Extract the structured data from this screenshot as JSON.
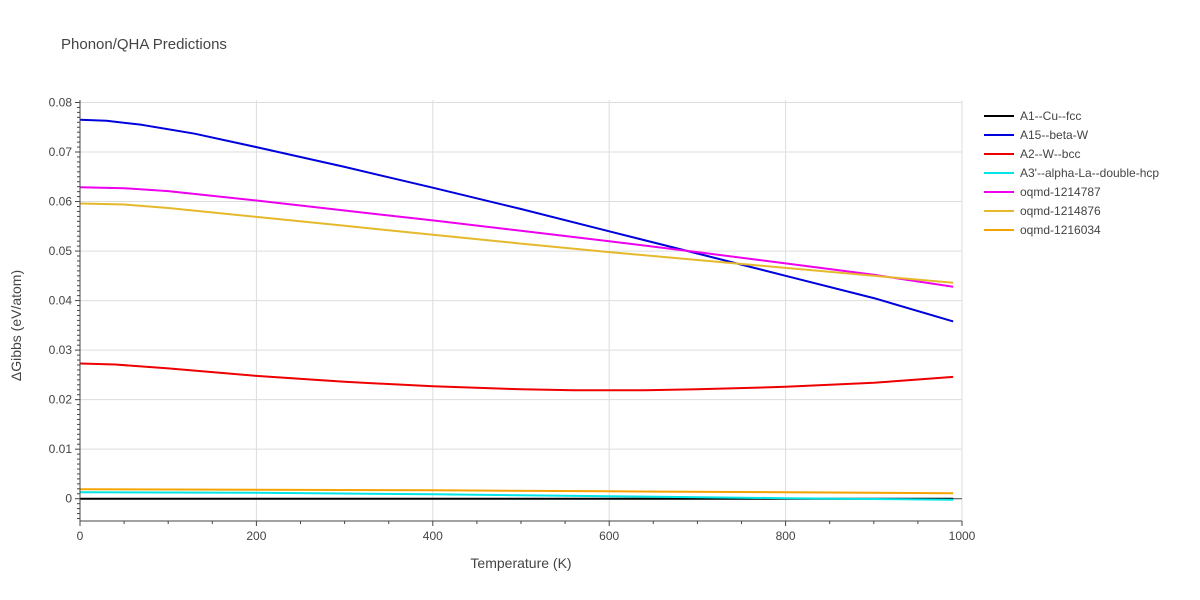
{
  "chart_data": {
    "type": "line",
    "title": "Phonon/QHA Predictions",
    "xlabel": "Temperature (K)",
    "ylabel": "ΔGibbs (eV/atom)",
    "xlim": [
      0,
      1000
    ],
    "ylim": [
      -0.0045,
      0.0805
    ],
    "x_ticks": [
      0,
      200,
      400,
      600,
      800,
      1000
    ],
    "y_ticks": [
      0,
      0.01,
      0.02,
      0.03,
      0.04,
      0.05,
      0.06,
      0.07,
      0.08
    ],
    "y_tick_labels": [
      "0",
      "0.01",
      "0.02",
      "0.03",
      "0.04",
      "0.05",
      "0.06",
      "0.07",
      "0.08"
    ],
    "grid": true,
    "legend_position": "right",
    "series": [
      {
        "name": "A1--Cu--fcc",
        "color": "#000000",
        "x": [
          0,
          990
        ],
        "y": [
          0,
          0
        ]
      },
      {
        "name": "A15--beta-W",
        "color": "#0000dd",
        "x": [
          0,
          30,
          70,
          130,
          200,
          300,
          400,
          500,
          600,
          700,
          800,
          900,
          990
        ],
        "y": [
          0.0765,
          0.0763,
          0.0755,
          0.0737,
          0.071,
          0.067,
          0.0628,
          0.0585,
          0.054,
          0.0495,
          0.045,
          0.0405,
          0.0358
        ]
      },
      {
        "name": "A2--W--bcc",
        "color": "#ee0000",
        "x": [
          0,
          40,
          100,
          200,
          300,
          400,
          500,
          560,
          640,
          700,
          800,
          900,
          990
        ],
        "y": [
          0.0273,
          0.0271,
          0.0263,
          0.0248,
          0.0236,
          0.0227,
          0.0221,
          0.0219,
          0.0219,
          0.0221,
          0.0226,
          0.0234,
          0.0246
        ]
      },
      {
        "name": "A3'--alpha-La--double-hcp",
        "color": "#00e5e5",
        "x": [
          0,
          200,
          400,
          600,
          800,
          990
        ],
        "y": [
          0.0013,
          0.0012,
          0.0009,
          0.0005,
          0.0001,
          -0.0002
        ]
      },
      {
        "name": "oqmd-1214787",
        "color": "#ee00ee",
        "x": [
          0,
          50,
          100,
          200,
          300,
          400,
          500,
          600,
          700,
          800,
          900,
          990
        ],
        "y": [
          0.0629,
          0.0627,
          0.0621,
          0.0602,
          0.0582,
          0.0562,
          0.0541,
          0.052,
          0.0498,
          0.0475,
          0.0452,
          0.0428
        ]
      },
      {
        "name": "oqmd-1214876",
        "color": "#e5b92b",
        "x": [
          0,
          50,
          100,
          200,
          300,
          400,
          500,
          600,
          700,
          800,
          900,
          990
        ],
        "y": [
          0.0596,
          0.0594,
          0.0587,
          0.0569,
          0.0551,
          0.0533,
          0.0515,
          0.0498,
          0.0482,
          0.0466,
          0.045,
          0.0436
        ]
      },
      {
        "name": "oqmd-1216034",
        "color": "#f5a300",
        "x": [
          0,
          200,
          400,
          600,
          800,
          990
        ],
        "y": [
          0.0019,
          0.0018,
          0.0017,
          0.0015,
          0.0013,
          0.0011
        ]
      }
    ]
  }
}
